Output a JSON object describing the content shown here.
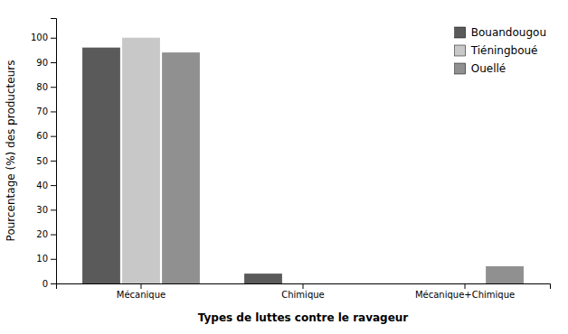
{
  "chart_data": {
    "type": "bar",
    "categories": [
      "Mécanique",
      "Chimique",
      "Mécanique+Chimique"
    ],
    "series": [
      {
        "name": "Bouandougou",
        "color": "#5a5a5a",
        "values": [
          96,
          4,
          0
        ]
      },
      {
        "name": "Tiéningboué",
        "color": "#c8c8c8",
        "values": [
          100,
          0,
          0
        ]
      },
      {
        "name": "Ouellé",
        "color": "#909090",
        "values": [
          94,
          0,
          7
        ]
      }
    ],
    "ylabel": "Pourcentage (%) des producteurs",
    "xlabel": "Types de luttes contre le ravageur",
    "ylim": [
      0,
      108
    ],
    "yticks": [
      0,
      10,
      20,
      30,
      40,
      50,
      60,
      70,
      80,
      90,
      100
    ],
    "legend": "upper right",
    "grid": false
  }
}
